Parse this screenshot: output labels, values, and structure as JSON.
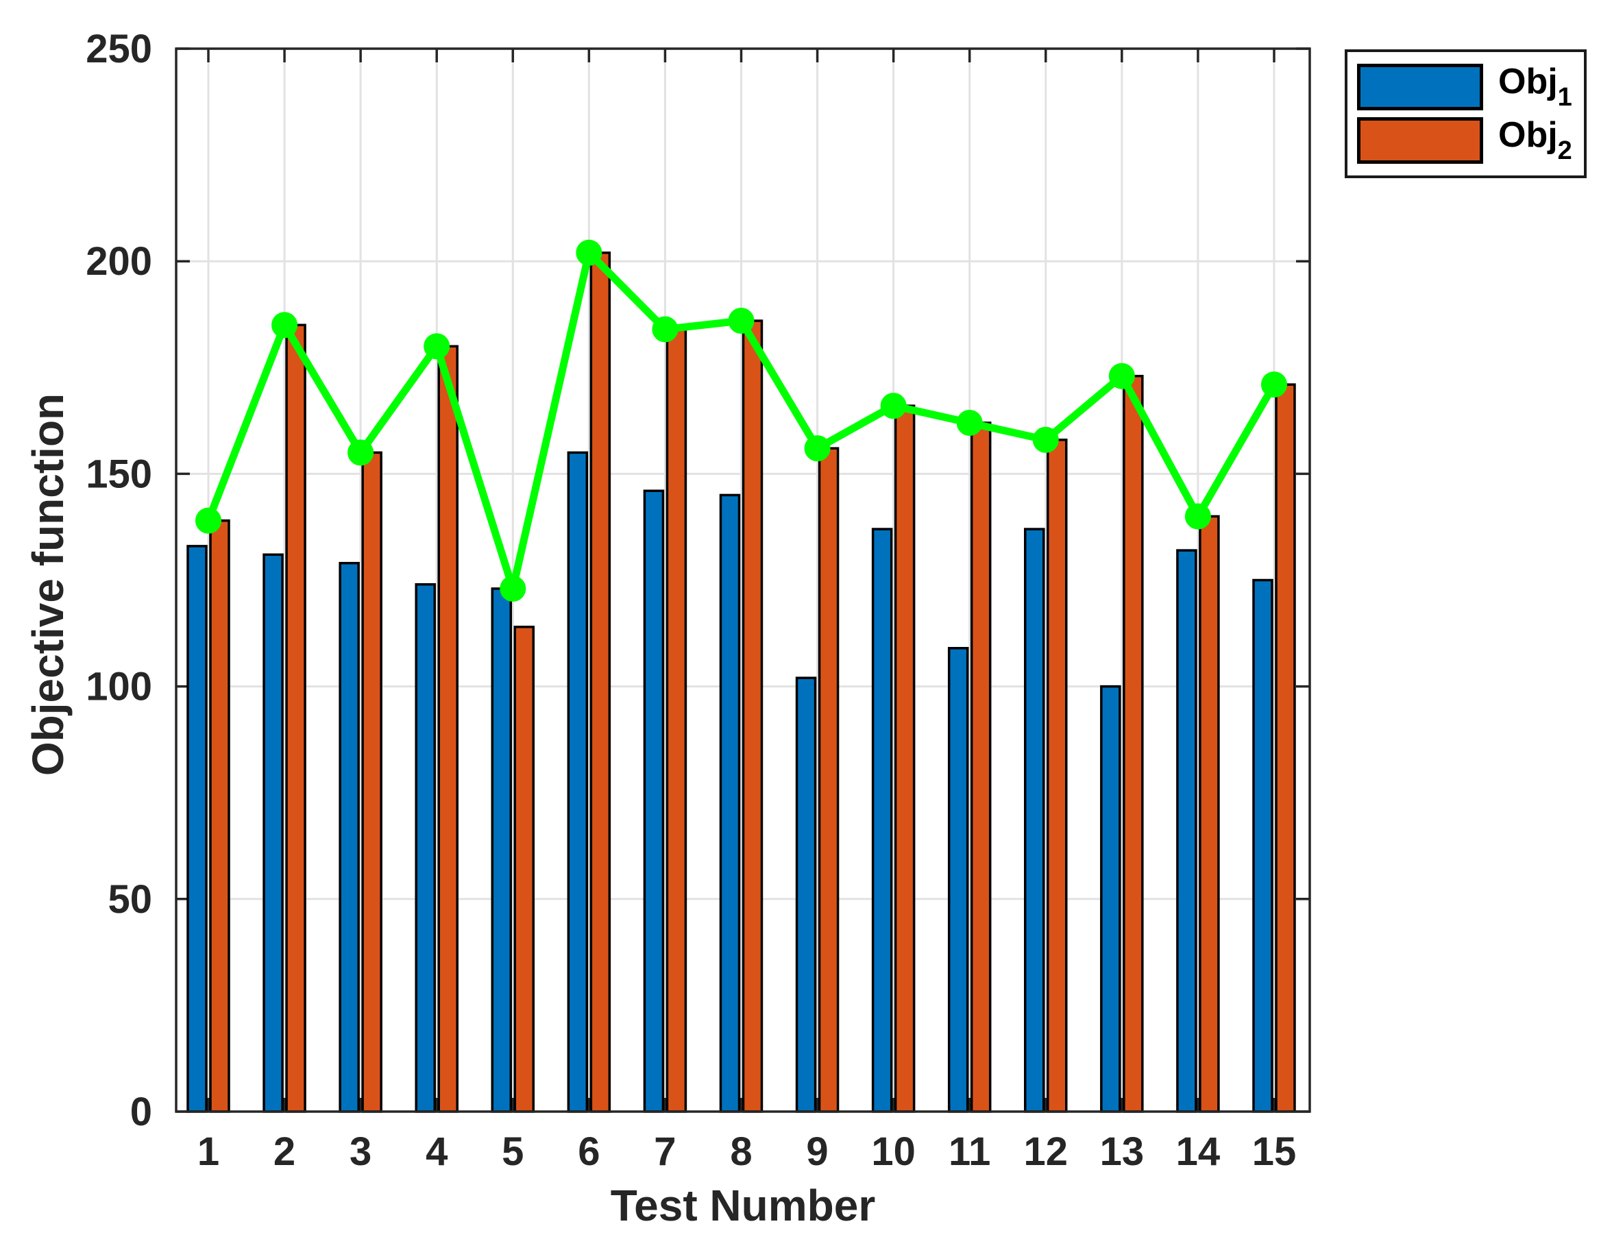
{
  "chart_data": {
    "type": "bar",
    "title": "",
    "xlabel": "Test Number",
    "ylabel": "Objective function",
    "categories": [
      "1",
      "2",
      "3",
      "4",
      "5",
      "6",
      "7",
      "8",
      "9",
      "10",
      "11",
      "12",
      "13",
      "14",
      "15"
    ],
    "series": [
      {
        "name": "Obj_1",
        "type": "bar",
        "color": "#0072BD",
        "legend_main": "Obj",
        "legend_sub": "1",
        "values": [
          133,
          131,
          129,
          124,
          123,
          155,
          146,
          145,
          102,
          137,
          109,
          137,
          100,
          132,
          125
        ]
      },
      {
        "name": "Obj_2",
        "type": "bar",
        "color": "#D95319",
        "legend_main": "Obj",
        "legend_sub": "2",
        "values": [
          139,
          185,
          155,
          180,
          114,
          202,
          184,
          186,
          156,
          166,
          162,
          158,
          173,
          140,
          171
        ]
      },
      {
        "name": "max_objective_line",
        "type": "line",
        "color": "#00FF00",
        "in_legend": false,
        "values": [
          139,
          185,
          155,
          180,
          123,
          202,
          184,
          186,
          156,
          166,
          162,
          158,
          173,
          140,
          171
        ]
      }
    ],
    "ylim": [
      0,
      250
    ],
    "yticks": [
      "0",
      "50",
      "100",
      "150",
      "200",
      "250"
    ],
    "grid": true,
    "legend_position": "outside-top-right"
  },
  "style_colors": {
    "axis": "#262626",
    "grid": "#e2e2e2",
    "bar_edge": "#000000",
    "background": "#ffffff",
    "text": "#262626"
  }
}
